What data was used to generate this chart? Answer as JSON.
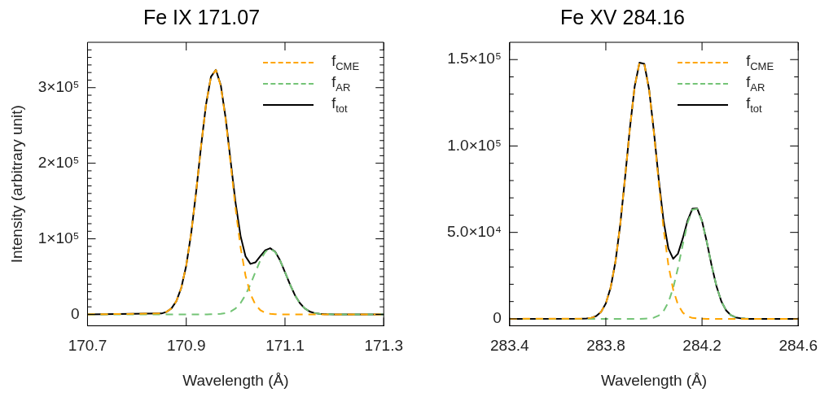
{
  "chart_data": [
    {
      "type": "line",
      "title": "Fe IX 171.07",
      "xlabel": "Wavelength (Å)",
      "ylabel": "Intensity (arbitrary unit)",
      "legend": "top right",
      "marker": "none",
      "grid": false,
      "x": [
        170.7,
        170.85,
        170.86,
        170.87,
        170.88,
        170.89,
        170.9,
        170.91,
        170.92,
        170.93,
        170.94,
        170.95,
        170.96,
        170.97,
        170.98,
        170.99,
        171.0,
        171.01,
        171.02,
        171.03,
        171.04,
        171.05,
        171.06,
        171.07,
        171.08,
        171.09,
        171.1,
        171.11,
        171.12,
        171.13,
        171.14,
        171.15,
        171.16,
        171.17,
        171.18,
        171.19,
        171.2,
        171.3
      ],
      "series": [
        {
          "name": "f$_{CME}$",
          "color": "#ffa500",
          "line_style": "dashed",
          "values": [
            0,
            1200,
            3300,
            7900,
            17600,
            35400,
            64600,
            107400,
            162200,
            222500,
            277400,
            314300,
            323400,
            302400,
            257000,
            198400,
            139200,
            88700,
            51400,
            27000,
            12900,
            5600,
            2200,
            800,
            300,
            100,
            0,
            0,
            0,
            0,
            0,
            0,
            0,
            0,
            0,
            0,
            0,
            0
          ]
        },
        {
          "name": "f$_{AR}$",
          "color": "#74c476",
          "line_style": "dashed",
          "values": [
            0,
            0,
            0,
            0,
            0,
            0,
            0,
            0,
            0,
            0,
            0,
            100,
            200,
            700,
            1700,
            3800,
            7900,
            15000,
            25600,
            39800,
            55900,
            71400,
            82700,
            86800,
            82700,
            71400,
            55900,
            39800,
            25600,
            15000,
            7900,
            3800,
            1700,
            700,
            200,
            100,
            0,
            0
          ]
        },
        {
          "name": "f$_{tot}$",
          "color": "#000000",
          "line_style": "solid",
          "values": [
            0,
            1200,
            3300,
            7900,
            17600,
            35400,
            64600,
            107400,
            162200,
            222500,
            277400,
            314400,
            323600,
            303100,
            258700,
            202200,
            147100,
            103700,
            77000,
            66800,
            68800,
            77000,
            84900,
            87600,
            83000,
            71500,
            55900,
            39800,
            25600,
            15000,
            7900,
            3800,
            1700,
            700,
            200,
            100,
            0,
            0
          ]
        }
      ],
      "xlim": [
        170.7,
        171.3
      ],
      "xticks": [
        170.7,
        170.9,
        171.1,
        171.3
      ],
      "ylim": [
        -15000,
        360000
      ],
      "yticks": [
        0,
        {
          "value": 10000,
          "label": null
        },
        {
          "value": 20000,
          "label": null
        },
        {
          "value": 30000,
          "label": null
        },
        {
          "value": 40000,
          "label": null
        },
        {
          "value": 50000,
          "label": null
        },
        {
          "value": 60000,
          "label": null
        },
        {
          "value": 70000,
          "label": null
        },
        {
          "value": 80000,
          "label": null
        },
        {
          "value": 90000,
          "label": null
        },
        {
          "value": 100000,
          "label": "1×10⁵"
        },
        {
          "value": 110000,
          "label": null
        },
        {
          "value": 120000,
          "label": null
        },
        {
          "value": 130000,
          "label": null
        },
        {
          "value": 140000,
          "label": null
        },
        {
          "value": 150000,
          "label": null
        },
        {
          "value": 160000,
          "label": null
        },
        {
          "value": 170000,
          "label": null
        },
        {
          "value": 180000,
          "label": null
        },
        {
          "value": 190000,
          "label": null
        },
        {
          "value": 200000,
          "label": "2×10⁵"
        },
        {
          "value": 210000,
          "label": null
        },
        {
          "value": 220000,
          "label": null
        },
        {
          "value": 230000,
          "label": null
        },
        {
          "value": 240000,
          "label": null
        },
        {
          "value": 250000,
          "label": null
        },
        {
          "value": 260000,
          "label": null
        },
        {
          "value": 270000,
          "label": null
        },
        {
          "value": 280000,
          "label": null
        },
        {
          "value": 290000,
          "label": null
        },
        {
          "value": 300000,
          "label": "3×10⁵"
        },
        {
          "value": 310000,
          "label": null
        },
        {
          "value": 320000,
          "label": null
        },
        {
          "value": 330000,
          "label": null
        },
        {
          "value": 340000,
          "label": null
        },
        {
          "value": 350000,
          "label": null
        }
      ]
    },
    {
      "type": "line",
      "title": "Fe XV 284.16",
      "xlabel": "Wavelength (Å)",
      "legend": "top right",
      "marker": "none",
      "grid": false,
      "x": [
        283.4,
        283.7,
        283.72,
        283.74,
        283.76,
        283.78,
        283.8,
        283.82,
        283.84,
        283.86,
        283.88,
        283.9,
        283.92,
        283.94,
        283.96,
        283.98,
        284.0,
        284.02,
        284.04,
        284.06,
        284.08,
        284.1,
        284.12,
        284.14,
        284.16,
        284.18,
        284.2,
        284.22,
        284.24,
        284.26,
        284.28,
        284.3,
        284.32,
        284.34,
        284.36,
        284.38,
        284.4,
        284.6
      ],
      "series": [
        {
          "name": "f$_{CME}$",
          "color": "#ffa500",
          "line_style": "dashed",
          "values": [
            0,
            100,
            200,
            600,
            1600,
            4000,
            8900,
            18000,
            33000,
            54600,
            81700,
            110300,
            134500,
            148200,
            147400,
            132500,
            107500,
            78800,
            52200,
            31200,
            16900,
            8200,
            3600,
            1400,
            500,
            200,
            100,
            0,
            0,
            0,
            0,
            0,
            0,
            0,
            0,
            0,
            0,
            0
          ]
        },
        {
          "name": "f$_{AR}$",
          "color": "#74c476",
          "line_style": "dashed",
          "values": [
            0,
            0,
            0,
            0,
            0,
            0,
            0,
            0,
            0,
            0,
            0,
            0,
            0,
            0,
            100,
            200,
            700,
            1900,
            4500,
            9500,
            17800,
            29500,
            43000,
            55500,
            63200,
            63600,
            56500,
            44400,
            30800,
            18900,
            10200,
            4900,
            2100,
            800,
            300,
            100,
            0,
            0
          ]
        },
        {
          "name": "f$_{tot}$",
          "color": "#000000",
          "line_style": "solid",
          "values": [
            0,
            100,
            200,
            600,
            1600,
            4000,
            8900,
            18000,
            33000,
            54600,
            81700,
            110300,
            134500,
            148200,
            147500,
            132700,
            108200,
            80700,
            56700,
            40700,
            34700,
            37700,
            46600,
            56900,
            63700,
            63800,
            56600,
            44400,
            30800,
            18900,
            10200,
            4900,
            2100,
            800,
            300,
            100,
            0,
            0
          ]
        }
      ],
      "xlim": [
        283.4,
        284.6
      ],
      "xticks": [
        283.4,
        283.8,
        284.2,
        284.6
      ],
      "ylim": [
        -4000,
        160000
      ],
      "yticks": [
        0,
        {
          "value": 10000,
          "label": null
        },
        {
          "value": 20000,
          "label": null
        },
        {
          "value": 30000,
          "label": null
        },
        {
          "value": 40000,
          "label": null
        },
        {
          "value": 50000,
          "label": "5.0×10⁴"
        },
        {
          "value": 60000,
          "label": null
        },
        {
          "value": 70000,
          "label": null
        },
        {
          "value": 80000,
          "label": null
        },
        {
          "value": 90000,
          "label": null
        },
        {
          "value": 100000,
          "label": "1.0×10⁵"
        },
        {
          "value": 110000,
          "label": null
        },
        {
          "value": 120000,
          "label": null
        },
        {
          "value": 130000,
          "label": null
        },
        {
          "value": 140000,
          "label": null
        },
        {
          "value": 150000,
          "label": "1.5×10⁵"
        }
      ]
    }
  ]
}
